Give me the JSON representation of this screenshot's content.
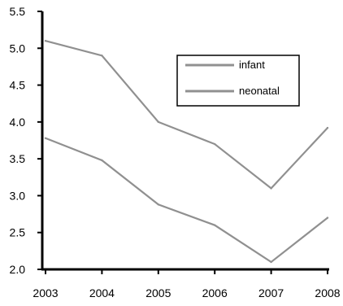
{
  "chart_data": {
    "type": "line",
    "title": "",
    "xlabel": "",
    "ylabel": "",
    "x": [
      "2003",
      "2004",
      "2005",
      "2006",
      "2007",
      "2008"
    ],
    "ylim": [
      2.0,
      5.5
    ],
    "yticks": [
      "2.0",
      "2.5",
      "3.0",
      "3.5",
      "4.0",
      "4.5",
      "5.0",
      "5.5"
    ],
    "series": [
      {
        "name": "infant",
        "values": [
          5.1,
          4.9,
          4.0,
          3.7,
          3.1,
          3.92
        ],
        "color": "#909090"
      },
      {
        "name": "neonatal",
        "values": [
          3.78,
          3.48,
          2.88,
          2.6,
          2.1,
          2.7
        ],
        "color": "#909090"
      }
    ],
    "grid": false,
    "legend_position": "top-right"
  }
}
